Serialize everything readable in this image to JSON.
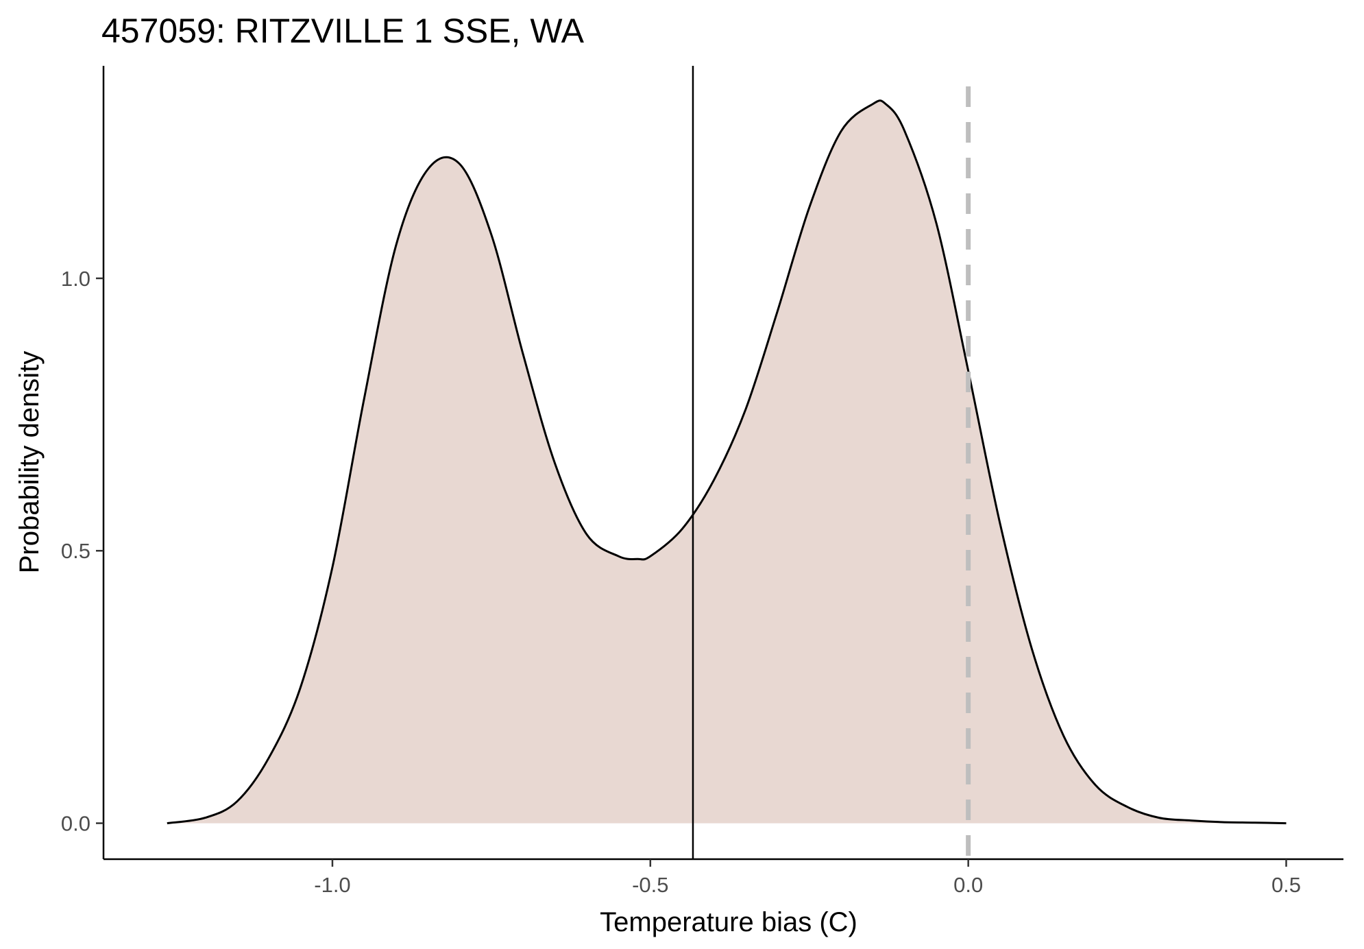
{
  "chart_data": {
    "type": "area",
    "title": "457059: RITZVILLE 1 SSE, WA",
    "xlabel": "Temperature bias (C)",
    "ylabel": "Probability density",
    "xlim": [
      -1.36,
      0.59
    ],
    "ylim": [
      -0.066,
      1.39
    ],
    "x_ticks": [
      -1.0,
      -0.5,
      0.0,
      0.5
    ],
    "x_tick_labels": [
      "-1.0",
      "-0.5",
      "0.0",
      "0.5"
    ],
    "y_ticks": [
      0.0,
      0.5,
      1.0
    ],
    "y_tick_labels": [
      "0.0",
      "0.5",
      "1.0"
    ],
    "grid": false,
    "series": [
      {
        "x": [
          -1.26,
          -1.2,
          -1.15,
          -1.1,
          -1.05,
          -1.0,
          -0.95,
          -0.9,
          -0.85,
          -0.8,
          -0.75,
          -0.7,
          -0.65,
          -0.6,
          -0.55,
          -0.52,
          -0.5,
          -0.45,
          -0.4,
          -0.35,
          -0.3,
          -0.25,
          -0.2,
          -0.15,
          -0.13,
          -0.1,
          -0.05,
          0.0,
          0.05,
          0.1,
          0.15,
          0.2,
          0.25,
          0.3,
          0.35,
          0.4,
          0.45,
          0.5
        ],
        "y": [
          0.0,
          0.01,
          0.04,
          0.12,
          0.25,
          0.47,
          0.78,
          1.06,
          1.2,
          1.21,
          1.08,
          0.86,
          0.66,
          0.53,
          0.49,
          0.485,
          0.49,
          0.54,
          0.63,
          0.76,
          0.94,
          1.13,
          1.27,
          1.32,
          1.32,
          1.27,
          1.1,
          0.83,
          0.55,
          0.32,
          0.16,
          0.07,
          0.03,
          0.01,
          0.005,
          0.002,
          0.001,
          0.0
        ],
        "fill": "#e8d8d2",
        "stroke": "#000000"
      }
    ],
    "reference_lines": [
      {
        "x": -0.433,
        "style": "solid",
        "color": "#000000"
      },
      {
        "x": 0.0,
        "style": "dashed",
        "color": "#bebebe"
      }
    ]
  }
}
